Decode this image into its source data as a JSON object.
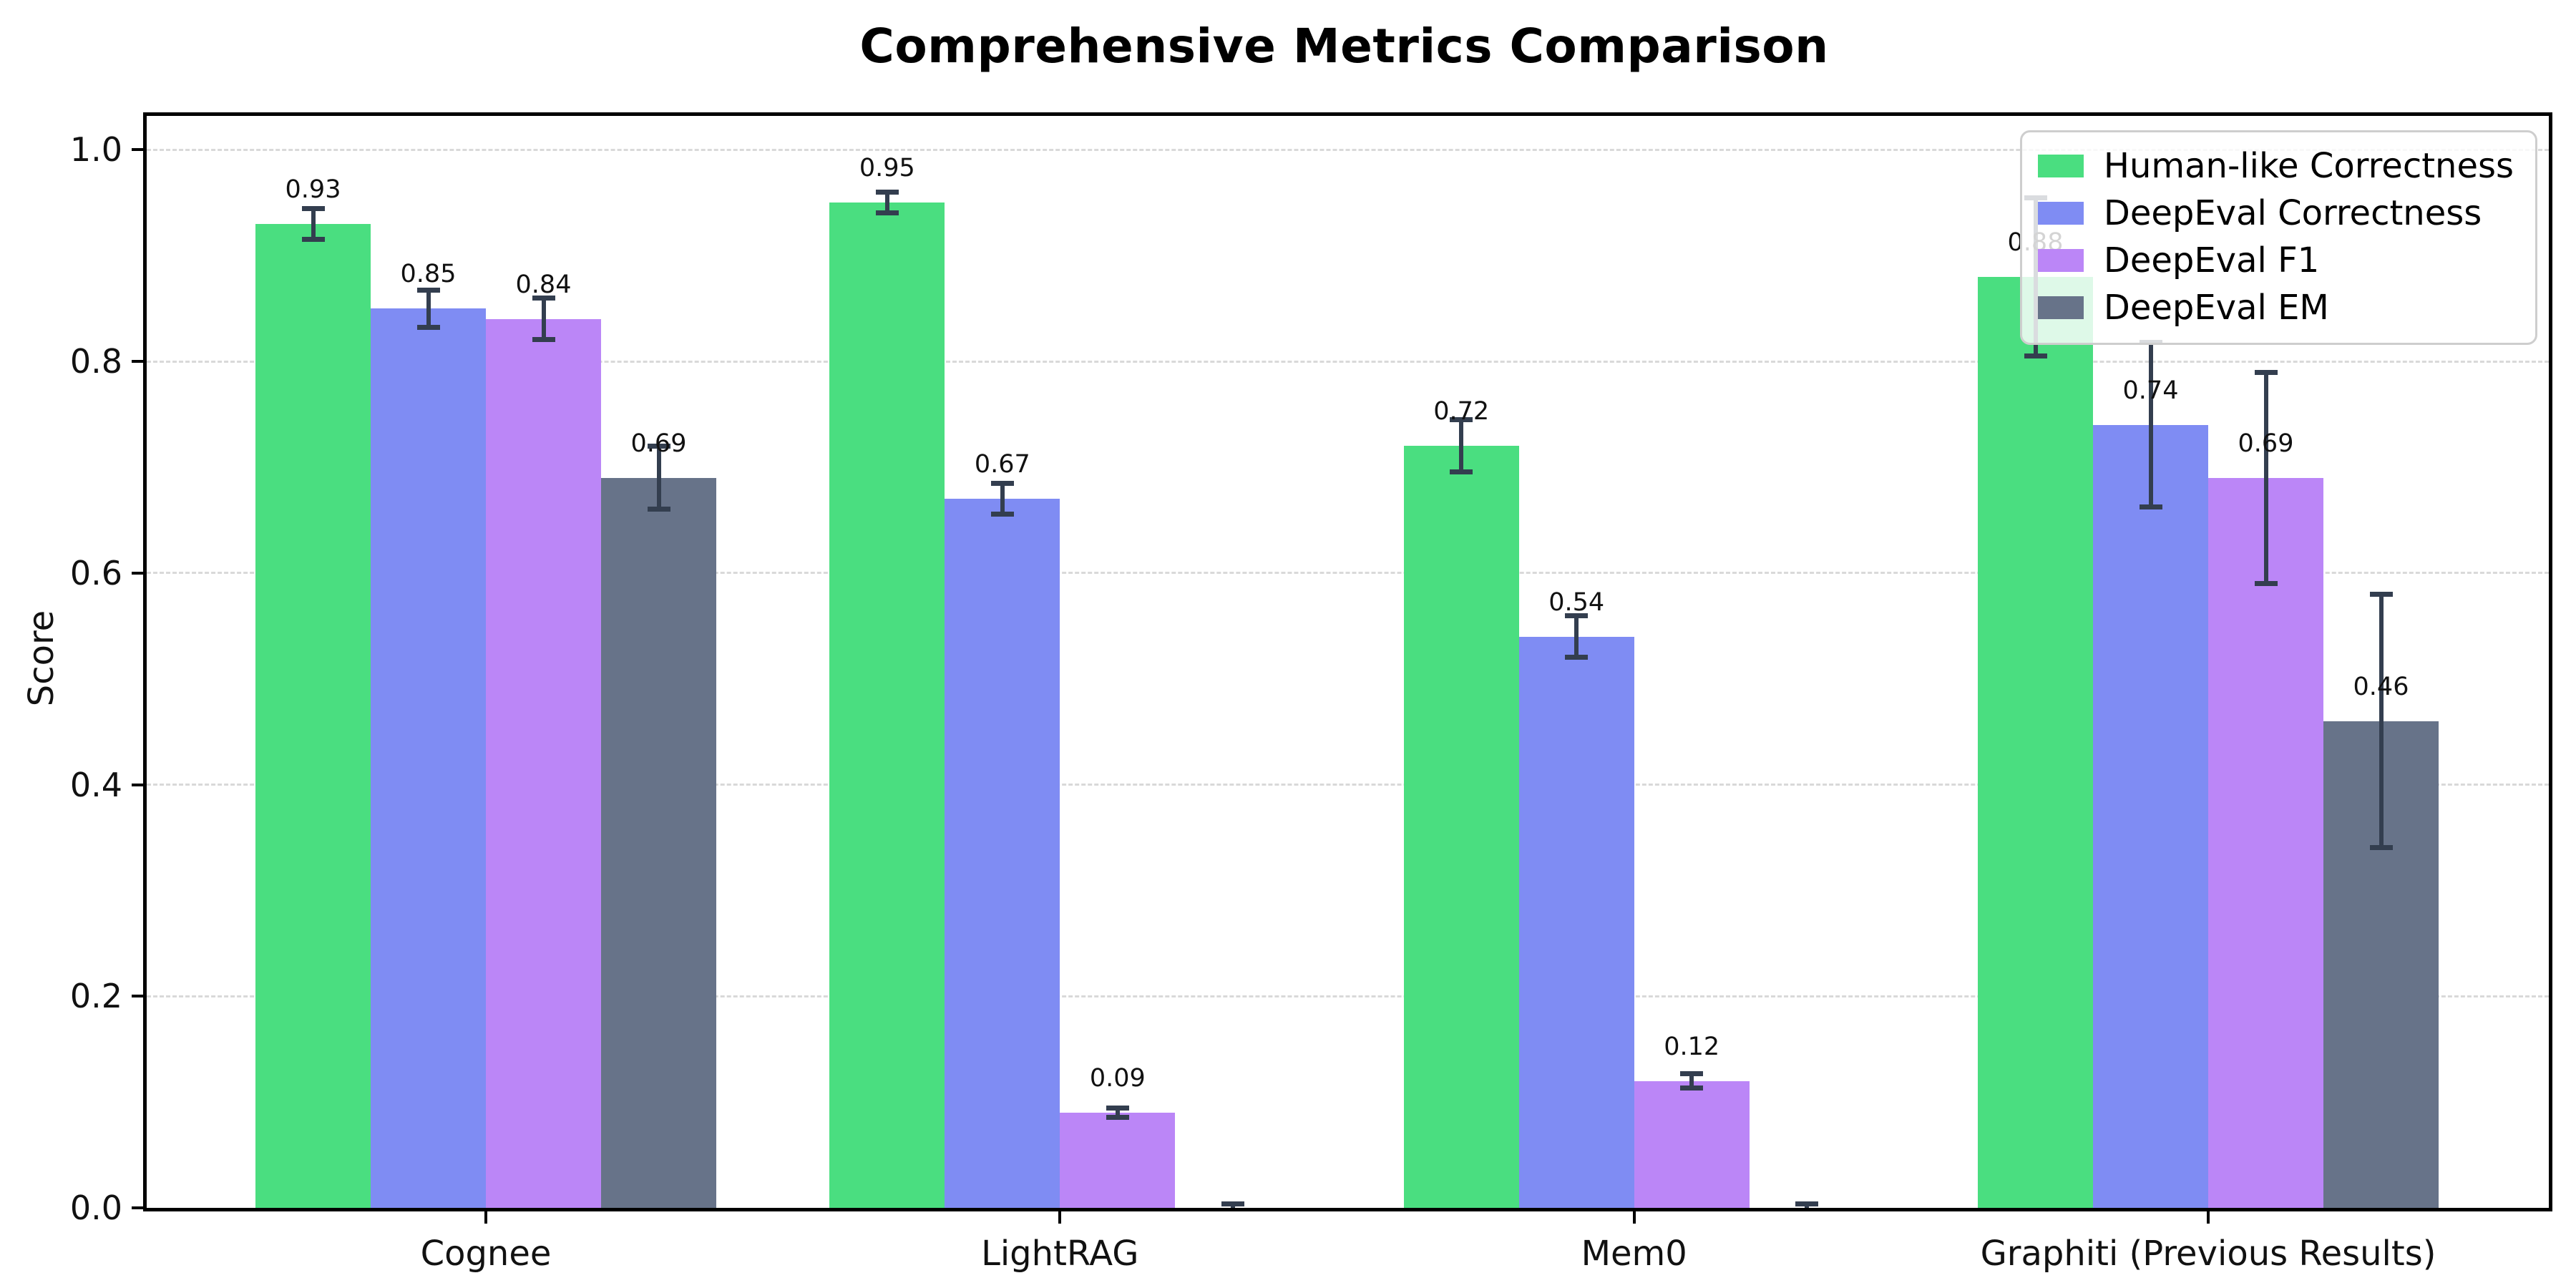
{
  "chart_data": {
    "type": "bar",
    "title": "Comprehensive Metrics Comparison",
    "ylabel": "Score",
    "xlabel": "",
    "categories": [
      "Cognee",
      "LightRAG",
      "Mem0",
      "Graphiti (Previous Results)"
    ],
    "series": [
      {
        "name": "Human-like Correctness",
        "color": "#4ade80",
        "values": [
          0.93,
          0.95,
          0.72,
          0.88
        ],
        "errors": [
          0.015,
          0.01,
          0.025,
          0.075
        ],
        "labels": [
          "0.93",
          "0.95",
          "0.72",
          "0.88"
        ]
      },
      {
        "name": "DeepEval Correctness",
        "color": "#7f8cf3",
        "values": [
          0.85,
          0.67,
          0.54,
          0.74
        ],
        "errors": [
          0.018,
          0.015,
          0.02,
          0.078
        ],
        "labels": [
          "0.85",
          "0.67",
          "0.54",
          "0.74"
        ]
      },
      {
        "name": "DeepEval F1",
        "color": "#bb86f7",
        "values": [
          0.84,
          0.09,
          0.12,
          0.69
        ],
        "errors": [
          0.02,
          0.005,
          0.007,
          0.1
        ],
        "labels": [
          "0.84",
          "0.09",
          "0.12",
          "0.69"
        ]
      },
      {
        "name": "DeepEval EM",
        "color": "#677389",
        "values": [
          0.69,
          0.0,
          0.0,
          0.46
        ],
        "errors": [
          0.03,
          0.004,
          0.004,
          0.12
        ],
        "labels": [
          "0.69",
          "",
          "",
          "0.46"
        ]
      }
    ],
    "yticks": [
      0.0,
      0.2,
      0.4,
      0.6,
      0.8,
      1.0
    ],
    "ytick_labels": [
      "0.0",
      "0.2",
      "0.4",
      "0.6",
      "0.8",
      "1.0"
    ],
    "ylim": [
      0,
      1.032
    ],
    "grid": "horizontal-dashed",
    "legend_position": "upper-right",
    "colors": {
      "errorbar": "#333e4f",
      "grid": "#d9d9d9",
      "spine": "#000000",
      "text": "#111111",
      "background": "#ffffff"
    }
  }
}
